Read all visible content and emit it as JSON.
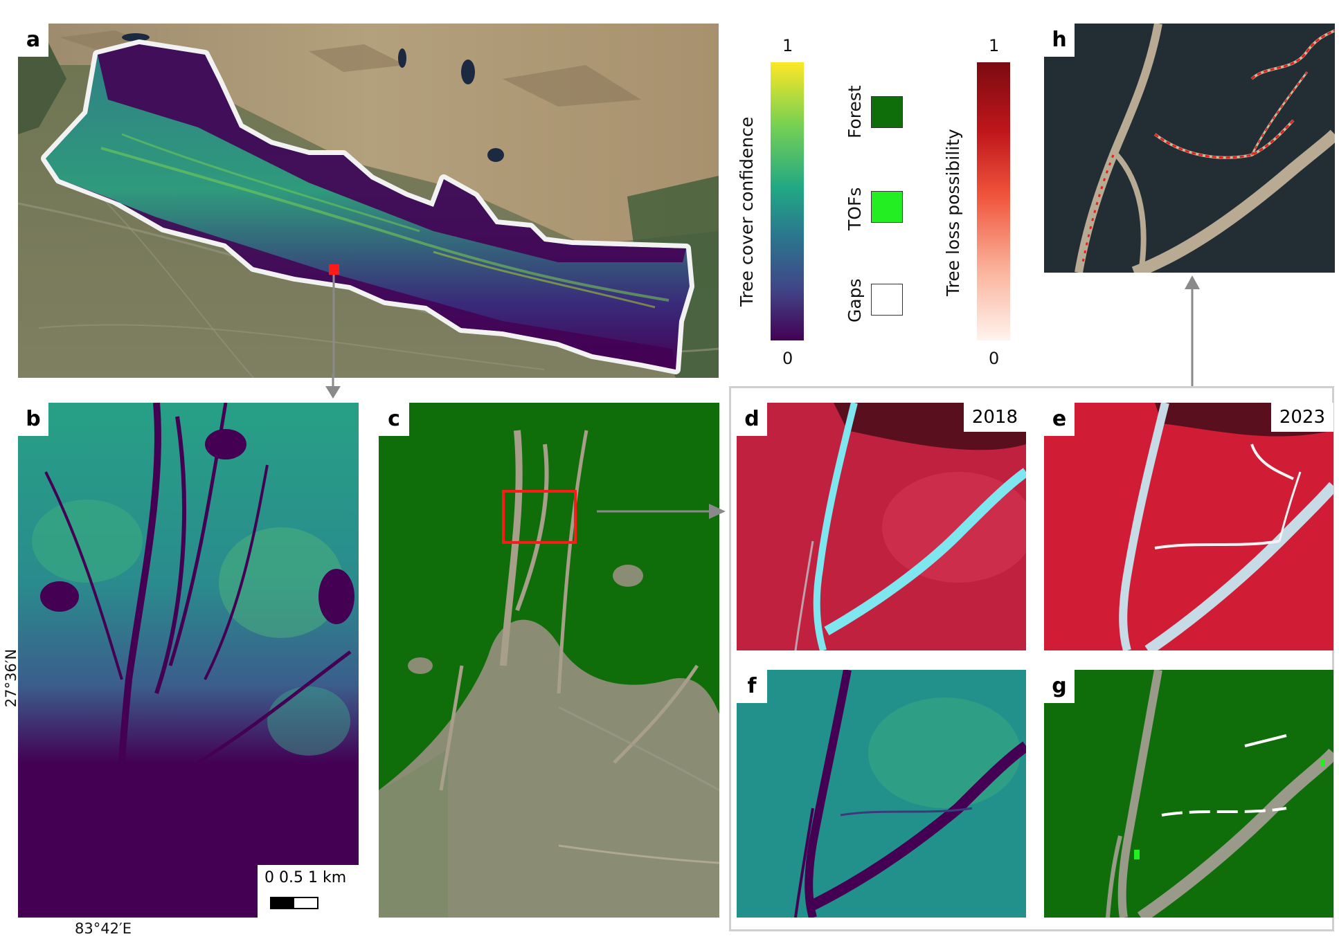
{
  "panels": {
    "a": {
      "letter": "a"
    },
    "b": {
      "letter": "b"
    },
    "c": {
      "letter": "c"
    },
    "d": {
      "letter": "d",
      "year": "2018"
    },
    "e": {
      "letter": "e",
      "year": "2023"
    },
    "f": {
      "letter": "f"
    },
    "g": {
      "letter": "g"
    },
    "h": {
      "letter": "h"
    }
  },
  "legend": {
    "tree_cover": {
      "title": "Tree cover confidence",
      "max": "1",
      "min": "0",
      "colors": [
        "#fde725",
        "#7ad151",
        "#22a884",
        "#2a788e",
        "#414487",
        "#440154"
      ]
    },
    "classes": [
      {
        "label": "Forest",
        "color": "#0f6e0a"
      },
      {
        "label": "TOFs",
        "color": "#22ee22"
      },
      {
        "label": "Gaps",
        "color": "#ffffff"
      }
    ],
    "tree_loss": {
      "title": "Tree loss possibility",
      "max": "1",
      "min": "0",
      "colors": [
        "#7a0b10",
        "#c0161c",
        "#f0553c",
        "#fbb39c",
        "#fff3ee"
      ]
    }
  },
  "scale_bar": {
    "label": "0 0.5 1 km"
  },
  "coordinates": {
    "lat": "27°36′N",
    "lon": "83°42′E"
  }
}
